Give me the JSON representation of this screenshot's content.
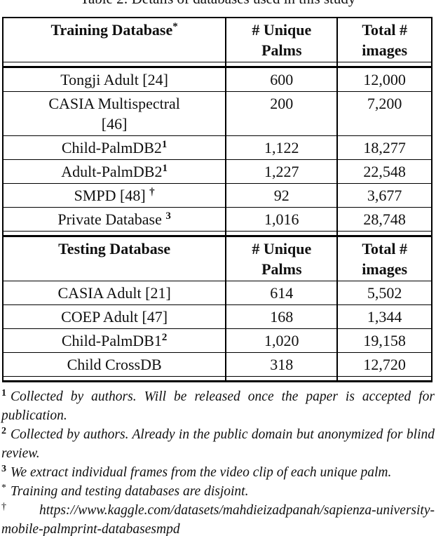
{
  "title": "Table 2: Details of databases used in this study",
  "colors": {
    "text": "#101010",
    "background": "#ffffff",
    "border": "#000000"
  },
  "table": {
    "sections": [
      {
        "header": {
          "name": "Training Database",
          "sup": "*",
          "palms": "# Unique\nPalms",
          "images": "Total #\nimages"
        },
        "rows": [
          {
            "name": "Tongji Adult [24]",
            "sup": "",
            "palms": "600",
            "images": "12,000"
          },
          {
            "name": "CASIA Multispectral\n[46]",
            "sup": "",
            "palms": "200",
            "images": "7,200"
          },
          {
            "name": "Child-PalmDB2",
            "sup": "1",
            "palms": "1,122",
            "images": "18,277"
          },
          {
            "name": "Adult-PalmDB2",
            "sup": "1",
            "palms": "1,227",
            "images": "22,548"
          },
          {
            "name": "SMPD [48] ",
            "sup": "†",
            "palms": "92",
            "images": "3,677"
          },
          {
            "name": "Private Database ",
            "sup": "3",
            "palms": "1,016",
            "images": "28,748"
          }
        ]
      },
      {
        "header": {
          "name": "Testing Database",
          "sup": "",
          "palms": "# Unique\nPalms",
          "images": "Total #\nimages"
        },
        "rows": [
          {
            "name": "CASIA Adult [21]",
            "sup": "",
            "palms": "614",
            "images": "5,502"
          },
          {
            "name": "COEP Adult [47]",
            "sup": "",
            "palms": "168",
            "images": "1,344"
          },
          {
            "name": "Child-PalmDB1",
            "sup": "2",
            "palms": "1,020",
            "images": "19,158"
          },
          {
            "name": "Child CrossDB",
            "sup": "",
            "palms": "318",
            "images": "12,720"
          }
        ]
      }
    ]
  },
  "footnotes": [
    {
      "marker": "1",
      "text": "Collected by authors.  Will be released once the paper is accepted for publication."
    },
    {
      "marker": "2",
      "text": "Collected by authors. Already in the public domain but anonymized for blind review."
    },
    {
      "marker": "3",
      "text": "We extract individual frames from the video clip of each unique palm."
    },
    {
      "marker": "*",
      "text": "Training and testing databases are disjoint."
    },
    {
      "marker": "†",
      "text": "https://www.kaggle.com/datasets/mahdieizadpanah/sapienza-university-mobile-palmprint-databasesmpd"
    }
  ]
}
